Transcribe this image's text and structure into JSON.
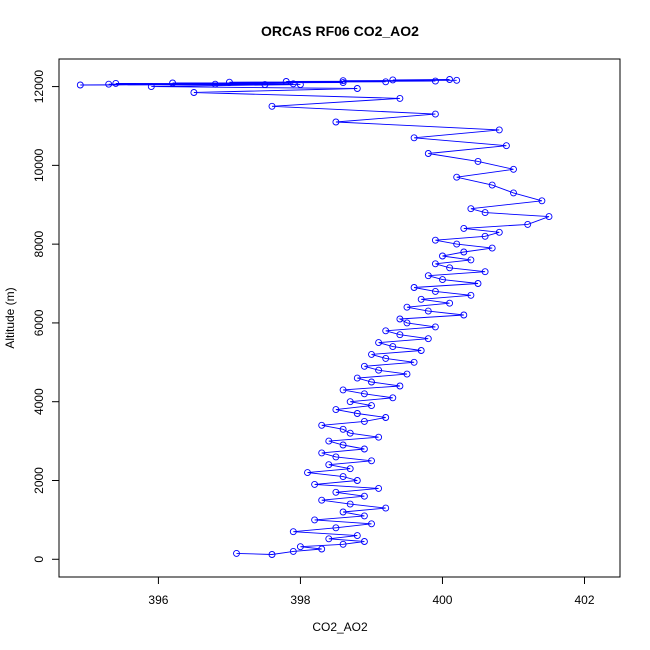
{
  "chart_data": {
    "type": "scatter",
    "title": "ORCAS RF06 CO2_AO2",
    "xlabel": "CO2_AO2",
    "ylabel": "Altitude (m)",
    "xlim": [
      394.6,
      402.5
    ],
    "ylim": [
      -450,
      12700
    ],
    "xticks": [
      396,
      398,
      400,
      402
    ],
    "yticks": [
      0,
      2000,
      4000,
      6000,
      8000,
      10000,
      12000
    ],
    "grid": false,
    "legend": "none",
    "point_style": "open-circle-connected",
    "color": "#0000ff",
    "series": [
      {
        "x": [
          397.1,
          397.6,
          397.9,
          398.3,
          398.0,
          398.6,
          398.9,
          398.4,
          398.8,
          397.9,
          398.5,
          399.0,
          398.2,
          398.9,
          398.6,
          399.2,
          398.7,
          398.3,
          398.9,
          398.5,
          399.1,
          398.2,
          398.8,
          398.6,
          398.1,
          398.7,
          398.4,
          399.0,
          398.5,
          398.3,
          398.9,
          398.6,
          398.4,
          399.1,
          398.7,
          398.6,
          398.3,
          398.9,
          399.2,
          398.8,
          398.5,
          399.0,
          398.7,
          399.3,
          398.9,
          398.6,
          399.4,
          399.0,
          398.8,
          399.5,
          399.1,
          398.9,
          399.6,
          399.2,
          399.0,
          399.7,
          399.3,
          399.1,
          399.8,
          399.4,
          399.2,
          399.9,
          399.5,
          399.4,
          400.3,
          399.8,
          399.5,
          400.1,
          399.7,
          400.4,
          399.9,
          399.6,
          400.5,
          400.0,
          399.8,
          400.6,
          400.1,
          399.9,
          400.4,
          400.0,
          400.3,
          400.7,
          400.2,
          399.9,
          400.6,
          400.8,
          400.3,
          401.2,
          401.5,
          400.6,
          400.4,
          401.4,
          401.0,
          400.7,
          400.2,
          401.0,
          400.5,
          399.8,
          400.9,
          399.6,
          400.8,
          398.5,
          399.9,
          397.6,
          399.4,
          396.5,
          398.8,
          395.9,
          398.0,
          395.3,
          397.5,
          394.9,
          396.8,
          395.4,
          397.9,
          396.2,
          398.6,
          397.0,
          399.2,
          397.8,
          399.9,
          398.6,
          400.2,
          399.3,
          400.1
        ],
        "y": [
          150,
          120,
          200,
          260,
          320,
          380,
          450,
          520,
          600,
          700,
          800,
          900,
          1000,
          1100,
          1200,
          1300,
          1400,
          1500,
          1600,
          1700,
          1800,
          1900,
          2000,
          2100,
          2200,
          2300,
          2400,
          2500,
          2600,
          2700,
          2800,
          2900,
          3000,
          3100,
          3200,
          3300,
          3400,
          3500,
          3600,
          3700,
          3800,
          3900,
          4000,
          4100,
          4200,
          4300,
          4400,
          4500,
          4600,
          4700,
          4800,
          4900,
          5000,
          5100,
          5200,
          5300,
          5400,
          5500,
          5600,
          5700,
          5800,
          5900,
          6000,
          6100,
          6200,
          6300,
          6400,
          6500,
          6600,
          6700,
          6800,
          6900,
          7000,
          7100,
          7200,
          7300,
          7400,
          7500,
          7600,
          7700,
          7800,
          7900,
          8000,
          8100,
          8200,
          8300,
          8400,
          8500,
          8700,
          8800,
          8900,
          9100,
          9300,
          9500,
          9700,
          9900,
          10100,
          10300,
          10500,
          10700,
          10900,
          11100,
          11300,
          11500,
          11700,
          11850,
          11950,
          12000,
          12050,
          12060,
          12050,
          12040,
          12060,
          12080,
          12070,
          12090,
          12100,
          12110,
          12120,
          12130,
          12140,
          12150,
          12160,
          12170,
          12180
        ]
      }
    ]
  }
}
